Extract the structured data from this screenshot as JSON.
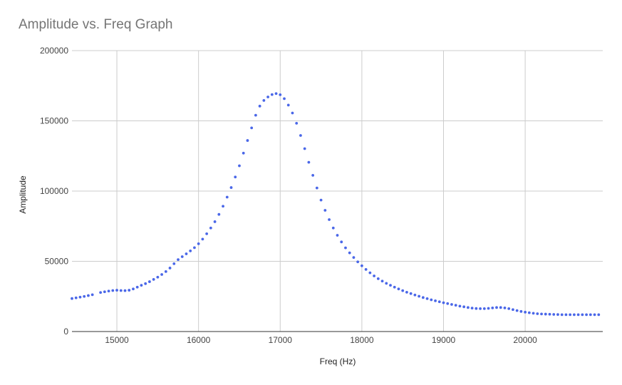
{
  "chart_data": {
    "type": "scatter",
    "title": "Amplitude vs. Freq Graph",
    "xlabel": "Freq (Hz)",
    "ylabel": "Amplitude",
    "xlim": [
      14450,
      20950
    ],
    "ylim": [
      0,
      200000
    ],
    "x_ticks": [
      15000,
      16000,
      17000,
      18000,
      19000,
      20000
    ],
    "y_ticks": [
      0,
      50000,
      100000,
      150000,
      200000
    ],
    "grid": true,
    "point_color": "#4a67e8",
    "series": [
      {
        "x": [
          14450,
          14500,
          14550,
          14600,
          14650,
          14700,
          14750,
          14800,
          14850,
          14900,
          14950,
          15000,
          15050,
          15100,
          15150,
          15200,
          15250,
          15300,
          15350,
          15400,
          15450,
          15500,
          15550,
          15600,
          15650,
          15700,
          15750,
          15800,
          15850,
          15900,
          15950,
          16000,
          16050,
          16100,
          16150,
          16200,
          16250,
          16300,
          16350,
          16400,
          16450,
          16500,
          16550,
          16600,
          16650,
          16700,
          16750,
          16800,
          16850,
          16900,
          16950,
          17000,
          17050,
          17100,
          17150,
          17200,
          17250,
          17300,
          17350,
          17400,
          17450,
          17500,
          17550,
          17600,
          17650,
          17700,
          17750,
          17800,
          17850,
          17900,
          17950,
          18000,
          18050,
          18100,
          18150,
          18200,
          18250,
          18300,
          18350,
          18400,
          18450,
          18500,
          18550,
          18600,
          18650,
          18700,
          18750,
          18800,
          18850,
          18900,
          18950,
          19000,
          19050,
          19100,
          19150,
          19200,
          19250,
          19300,
          19350,
          19400,
          19450,
          19500,
          19550,
          19600,
          19650,
          19700,
          19750,
          19800,
          19850,
          19900,
          19950,
          20000,
          20050,
          20100,
          20150,
          20200,
          20250,
          20300,
          20350,
          20400,
          20450,
          20500,
          20550,
          20600,
          20650,
          20700,
          20750,
          20800,
          20850,
          20900
        ],
        "y": [
          23500,
          24000,
          24500,
          25000,
          25600,
          26200,
          null,
          27800,
          28300,
          28800,
          29200,
          29400,
          29200,
          29100,
          29400,
          30300,
          31600,
          32900,
          34100,
          35500,
          37100,
          38700,
          40600,
          42700,
          45200,
          48300,
          51200,
          53300,
          55300,
          57400,
          59700,
          62500,
          65800,
          69600,
          73700,
          78200,
          83400,
          89200,
          95700,
          102500,
          110000,
          118000,
          127000,
          136000,
          145000,
          154000,
          160500,
          164500,
          167000,
          168700,
          169400,
          168600,
          165800,
          161200,
          155600,
          148300,
          139600,
          130200,
          120500,
          111200,
          102200,
          93600,
          86300,
          79700,
          73700,
          68500,
          63800,
          59600,
          56000,
          52700,
          49600,
          46800,
          44200,
          41800,
          39600,
          37600,
          35900,
          34300,
          32900,
          31600,
          30300,
          29100,
          28000,
          27000,
          26000,
          25100,
          24200,
          23400,
          22600,
          21900,
          21200,
          20500,
          19900,
          19300,
          18700,
          18100,
          17600,
          17100,
          16700,
          16400,
          16300,
          16300,
          16500,
          16800,
          17100,
          17100,
          16800,
          16300,
          15600,
          14900,
          14300,
          13800,
          13400,
          13000,
          12700,
          12500,
          12400,
          12300,
          12200,
          12100,
          12000,
          12000,
          12000,
          12000,
          12000,
          12000,
          12000,
          12000,
          12000,
          12000
        ]
      }
    ]
  }
}
